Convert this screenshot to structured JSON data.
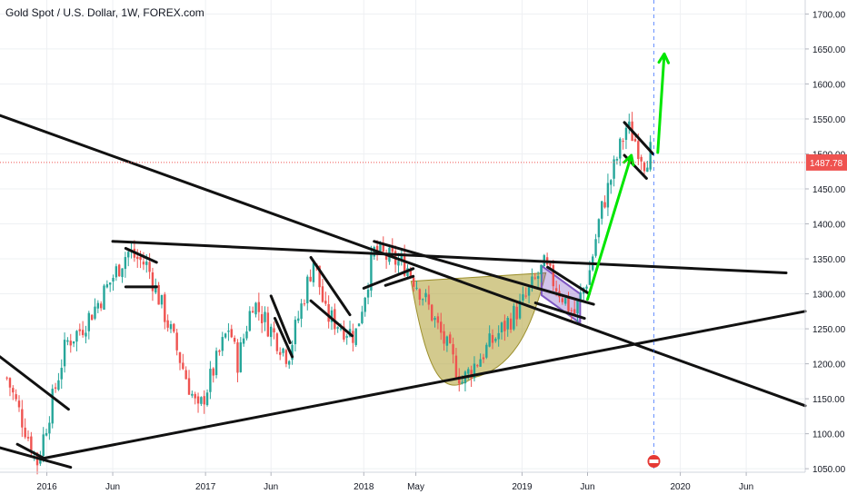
{
  "chart_data": {
    "type": "candlestick",
    "title": "Gold Spot / U.S. Dollar, 1W, FOREX.com",
    "ylim": [
      1045,
      1720
    ],
    "y_ticks": [
      1050,
      1100,
      1150,
      1200,
      1250,
      1300,
      1350,
      1400,
      1450,
      1500,
      1550,
      1600,
      1650,
      1700
    ],
    "y_tick_labels": [
      "1050.00",
      "1100.00",
      "1150.00",
      "1200.00",
      "1250.00",
      "1300.00",
      "1350.00",
      "1400.00",
      "1450.00",
      "1500.00",
      "1550.00",
      "1600.00",
      "1650.00",
      "1700.00"
    ],
    "x_ticks": [
      {
        "label": "2016",
        "date": "2016-01-01"
      },
      {
        "label": "Jun",
        "date": "2016-06-01"
      },
      {
        "label": "2017",
        "date": "2017-01-01"
      },
      {
        "label": "Jun",
        "date": "2017-06-01"
      },
      {
        "label": "2018",
        "date": "2018-01-01"
      },
      {
        "label": "May",
        "date": "2018-05-01"
      },
      {
        "label": "2019",
        "date": "2019-01-01"
      },
      {
        "label": "Jun",
        "date": "2019-06-01"
      },
      {
        "label": "2020",
        "date": "2020-01-01"
      },
      {
        "label": "Jun",
        "date": "2020-06-01"
      }
    ],
    "x_range": [
      "2015-09-15",
      "2020-10-15"
    ],
    "grid": true,
    "last_price": 1487.78,
    "last_price_label": "1487.78",
    "up_color": "#26a69a",
    "down_color": "#ef5350",
    "price_line_color": "#ef5350",
    "vertical_marker_date": "2019-11-01",
    "anchors": [
      [
        "2015-10-01",
        1180
      ],
      [
        "2015-12-10",
        1060
      ],
      [
        "2016-02-15",
        1230
      ],
      [
        "2016-03-20",
        1250
      ],
      [
        "2016-05-01",
        1290
      ],
      [
        "2016-07-05",
        1360
      ],
      [
        "2016-08-20",
        1340
      ],
      [
        "2016-10-05",
        1260
      ],
      [
        "2016-12-15",
        1130
      ],
      [
        "2017-02-25",
        1255
      ],
      [
        "2017-03-15",
        1200
      ],
      [
        "2017-04-20",
        1290
      ],
      [
        "2017-07-10",
        1210
      ],
      [
        "2017-09-08",
        1350
      ],
      [
        "2017-10-05",
        1270
      ],
      [
        "2017-12-12",
        1240
      ],
      [
        "2018-01-25",
        1360
      ],
      [
        "2018-04-10",
        1340
      ],
      [
        "2018-05-20",
        1295
      ],
      [
        "2018-08-16",
        1175
      ],
      [
        "2018-10-15",
        1225
      ],
      [
        "2019-01-01",
        1285
      ],
      [
        "2019-02-20",
        1340
      ],
      [
        "2019-05-01",
        1270
      ],
      [
        "2019-06-05",
        1330
      ],
      [
        "2019-07-01",
        1415
      ],
      [
        "2019-08-30",
        1540
      ],
      [
        "2019-09-15",
        1525
      ],
      [
        "2019-10-10",
        1490
      ],
      [
        "2019-10-25",
        1505
      ]
    ],
    "trendlines": [
      {
        "name": "long-resistance-line",
        "from": [
          "2015-09-15",
          1555
        ],
        "to": [
          "2020-10-15",
          1140
        ]
      },
      {
        "name": "horizontal-resistance-line",
        "from": [
          "2016-06-01",
          1375
        ],
        "to": [
          "2020-09-01",
          1330
        ]
      },
      {
        "name": "rising-support-line",
        "from": [
          "2015-12-25",
          1065
        ],
        "to": [
          "2020-10-15",
          1275
        ]
      },
      {
        "name": "early-channel-line",
        "from": [
          "2015-09-15",
          1210
        ],
        "to": [
          "2016-02-20",
          1135
        ]
      },
      {
        "name": "early-lower-line",
        "from": [
          "2015-09-15",
          1080
        ],
        "to": [
          "2016-02-25",
          1052
        ]
      },
      {
        "name": "early-bottom-line",
        "from": [
          "2015-10-25",
          1085
        ],
        "to": [
          "2015-12-25",
          1065
        ]
      },
      {
        "name": "flag-2016-top",
        "from": [
          "2016-07-01",
          1365
        ],
        "to": [
          "2016-09-10",
          1345
        ]
      },
      {
        "name": "flag-2016-bottom",
        "from": [
          "2016-07-01",
          1310
        ],
        "to": [
          "2016-09-10",
          1310
        ]
      },
      {
        "name": "flag-2017-a1",
        "from": [
          "2017-06-01",
          1297
        ],
        "to": [
          "2017-07-15",
          1230
        ]
      },
      {
        "name": "flag-2017-a2",
        "from": [
          "2017-06-10",
          1265
        ],
        "to": [
          "2017-07-20",
          1210
        ]
      },
      {
        "name": "flag-2017-b1",
        "from": [
          "2017-09-01",
          1352
        ],
        "to": [
          "2017-11-30",
          1270
        ]
      },
      {
        "name": "flag-2017-b2",
        "from": [
          "2017-09-01",
          1290
        ],
        "to": [
          "2017-12-05",
          1240
        ]
      },
      {
        "name": "rise-2018-line",
        "from": [
          "2018-01-01",
          1308
        ],
        "to": [
          "2018-04-25",
          1336
        ]
      },
      {
        "name": "rise-2018-lower",
        "from": [
          "2018-02-20",
          1312
        ],
        "to": [
          "2018-04-25",
          1325
        ]
      },
      {
        "name": "neckline-line",
        "from": [
          "2018-01-25",
          1375
        ],
        "to": [
          "2019-06-15",
          1285
        ]
      },
      {
        "name": "flag-2019-lower",
        "from": [
          "2019-02-01",
          1287
        ],
        "to": [
          "2019-05-25",
          1265
        ]
      },
      {
        "name": "flag-2019-upper",
        "from": [
          "2019-03-01",
          1338
        ],
        "to": [
          "2019-06-05",
          1300
        ]
      },
      {
        "name": "flag-final-top",
        "from": [
          "2019-08-25",
          1545
        ],
        "to": [
          "2019-10-30",
          1500
        ]
      },
      {
        "name": "flag-final-bottom",
        "from": [
          "2019-08-25",
          1498
        ],
        "to": [
          "2019-10-15",
          1465
        ]
      }
    ],
    "cup": {
      "from": [
        "2018-04-20",
        1318
      ],
      "bottom": [
        "2018-09-10",
        1180
      ],
      "to": [
        "2019-02-25",
        1330
      ],
      "color": "#b5a642"
    },
    "flag_box": {
      "points": [
        [
          "2019-02-15",
          1340
        ],
        [
          "2019-05-15",
          1300
        ],
        [
          "2019-05-15",
          1258
        ],
        [
          "2019-02-15",
          1298
        ]
      ],
      "color": "#7e57c2"
    },
    "projection_arrows": [
      {
        "from": [
          "2019-06-01",
          1292
        ],
        "to": [
          "2019-09-10",
          1498
        ]
      },
      {
        "from": [
          "2019-11-10",
          1502
        ],
        "to": [
          "2019-11-25",
          1643
        ]
      }
    ],
    "arrow_color": "#00e600"
  }
}
